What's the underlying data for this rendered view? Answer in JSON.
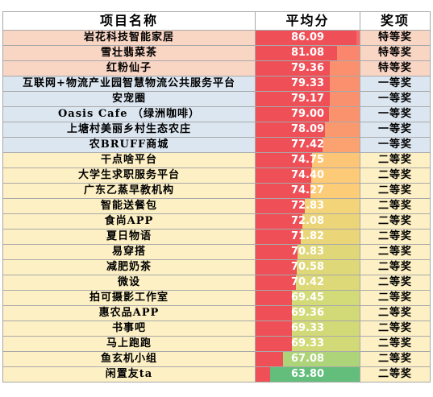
{
  "headers": {
    "name": "项目名称",
    "score": "平均分",
    "award": "奖项"
  },
  "score_scale": {
    "min": 60,
    "max": 87
  },
  "rows": [
    {
      "name": "岩花科技智能家居",
      "score": "86.09",
      "award": "特等奖",
      "tier": "special"
    },
    {
      "name": "雪壮翡菜茶",
      "score": "81.08",
      "award": "特等奖",
      "tier": "special"
    },
    {
      "name": "红粉仙子",
      "score": "79.36",
      "award": "特等奖",
      "tier": "special"
    },
    {
      "name": "互联网+物流产业园智慧物流公共服务平台",
      "score": "79.33",
      "award": "一等奖",
      "tier": "first"
    },
    {
      "name": "安宠圈",
      "score": "79.17",
      "award": "一等奖",
      "tier": "first"
    },
    {
      "name": "Oasis Cafe （绿洲咖啡）",
      "score": "79.00",
      "award": "一等奖",
      "tier": "first"
    },
    {
      "name": "上塘村美丽乡村生态农庄",
      "score": "78.09",
      "award": "一等奖",
      "tier": "first"
    },
    {
      "name": "农BRUFF商城",
      "score": "77.42",
      "award": "一等奖",
      "tier": "first"
    },
    {
      "name": "干点啥平台",
      "score": "74.75",
      "award": "二等奖",
      "tier": "second"
    },
    {
      "name": "大学生求职服务平台",
      "score": "74.40",
      "award": "二等奖",
      "tier": "second"
    },
    {
      "name": "广东乙蒸早教机构",
      "score": "74.27",
      "award": "二等奖",
      "tier": "second"
    },
    {
      "name": "智能送餐包",
      "score": "72.83",
      "award": "二等奖",
      "tier": "second"
    },
    {
      "name": "食尚APP",
      "score": "72.08",
      "award": "二等奖",
      "tier": "second"
    },
    {
      "name": "夏日物语",
      "score": "71.82",
      "award": "二等奖",
      "tier": "second"
    },
    {
      "name": "易穿搭",
      "score": "70.83",
      "award": "二等奖",
      "tier": "second"
    },
    {
      "name": "减肥奶茶",
      "score": "70.58",
      "award": "二等奖",
      "tier": "second"
    },
    {
      "name": "微设",
      "score": "70.42",
      "award": "二等奖",
      "tier": "second"
    },
    {
      "name": "拍可摄影工作室",
      "score": "69.45",
      "award": "二等奖",
      "tier": "second"
    },
    {
      "name": "惠农品APP",
      "score": "69.36",
      "award": "二等奖",
      "tier": "second"
    },
    {
      "name": "书事吧",
      "score": "69.33",
      "award": "二等奖",
      "tier": "second"
    },
    {
      "name": "马上跑跑",
      "score": "69.33",
      "award": "二等奖",
      "tier": "second"
    },
    {
      "name": "鱼玄机小组",
      "score": "67.08",
      "award": "二等奖",
      "tier": "second"
    },
    {
      "name": "闲置友ta",
      "score": "63.80",
      "award": "二等奖",
      "tier": "second"
    }
  ],
  "colors": {
    "special": "#f9d5c4",
    "first": "#dce6f1",
    "second": "#fdf0c4",
    "bar": "#ef4f57"
  }
}
